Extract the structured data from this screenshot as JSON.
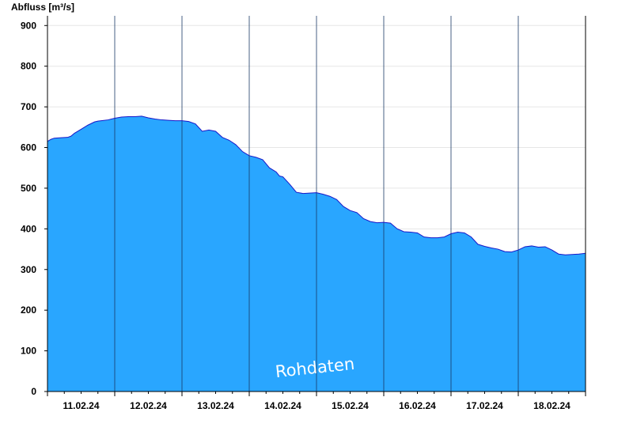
{
  "chart_data": {
    "type": "area",
    "ylabel": "Abfluss [m³/s]",
    "ylim": [
      0,
      920
    ],
    "yticks": [
      0,
      100,
      200,
      300,
      400,
      500,
      600,
      700,
      800,
      900
    ],
    "day_labels": [
      "11.02.24",
      "12.02.24",
      "13.02.24",
      "14.02.24",
      "15.02.24",
      "16.02.24",
      "17.02.24",
      "18.02.24"
    ],
    "x_unit": "day",
    "xlim": [
      0,
      8
    ],
    "grid": true,
    "fill_color": "#29a6ff",
    "line_color": "#1818c8",
    "watermark": "Rohdaten",
    "series": [
      {
        "x": [
          0,
          0.05,
          0.1,
          0.2,
          0.3,
          0.35,
          0.4,
          0.5,
          0.6,
          0.7,
          0.75,
          0.8,
          0.9,
          1.0,
          1.1,
          1.2,
          1.3,
          1.4,
          1.5,
          1.6,
          1.7,
          1.8,
          1.9,
          2.0,
          2.1,
          2.2,
          2.3,
          2.4,
          2.5,
          2.6,
          2.7,
          2.8,
          2.9,
          3.0,
          3.1,
          3.2,
          3.3,
          3.4,
          3.45,
          3.5,
          3.6,
          3.7,
          3.8,
          3.9,
          4.0,
          4.1,
          4.2,
          4.3,
          4.4,
          4.5,
          4.6,
          4.7,
          4.8,
          4.9,
          5.0,
          5.1,
          5.2,
          5.3,
          5.4,
          5.5,
          5.6,
          5.7,
          5.8,
          5.9,
          6.0,
          6.1,
          6.2,
          6.3,
          6.4,
          6.5,
          6.6,
          6.7,
          6.8,
          6.9,
          7.0,
          7.1,
          7.2,
          7.3,
          7.4,
          7.5,
          7.6,
          7.7,
          7.8,
          7.9,
          8.0
        ],
        "y": [
          615,
          620,
          623,
          624,
          625,
          628,
          635,
          645,
          655,
          663,
          665,
          666,
          668,
          672,
          675,
          676,
          676,
          677,
          673,
          670,
          668,
          667,
          666,
          666,
          664,
          658,
          640,
          643,
          640,
          625,
          618,
          607,
          590,
          580,
          576,
          570,
          550,
          540,
          530,
          528,
          510,
          490,
          487,
          488,
          489,
          485,
          480,
          472,
          455,
          445,
          440,
          425,
          418,
          415,
          416,
          414,
          400,
          393,
          392,
          390,
          380,
          378,
          378,
          380,
          388,
          392,
          390,
          380,
          362,
          357,
          353,
          350,
          344,
          343,
          348,
          356,
          358,
          355,
          356,
          348,
          338,
          336,
          337,
          338,
          340
        ]
      }
    ]
  }
}
